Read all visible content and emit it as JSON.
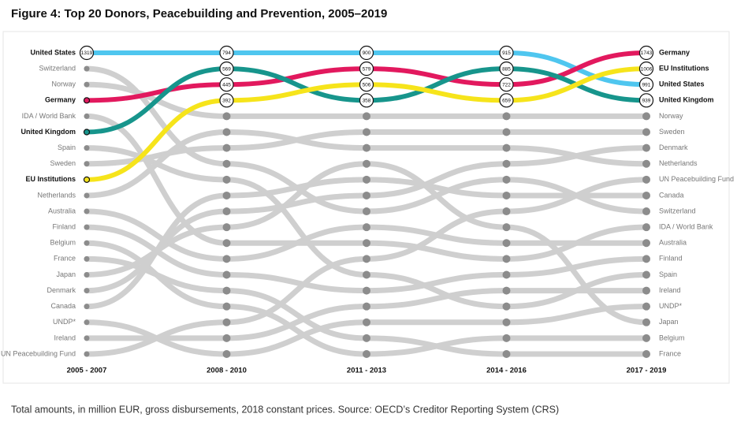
{
  "chart_data": {
    "type": "bump",
    "title": "Figure 4: Top 20 Donors, Peacebuilding and Prevention, 2005–2019",
    "footnote": "Total amounts, in million EUR, gross disbursements, 2018 constant prices. Source: OECD’s Creditor Reporting System (CRS)",
    "categories": [
      "2005 - 2007",
      "2008 - 2010",
      "2011 - 2013",
      "2014 - 2016",
      "2017 - 2019"
    ],
    "ylim": [
      1,
      20
    ],
    "series": [
      {
        "name": "United States",
        "color": "#4fc6ef",
        "emphasis": true,
        "ranks": [
          1,
          1,
          1,
          1,
          3
        ],
        "values": [
          1319,
          794,
          900,
          915,
          991
        ]
      },
      {
        "name": "Switzerland",
        "color": "#cfcfcf",
        "ranks": [
          2,
          8,
          11,
          9,
          11
        ]
      },
      {
        "name": "Norway",
        "color": "#cfcfcf",
        "ranks": [
          3,
          5,
          5,
          5,
          5
        ]
      },
      {
        "name": "Germany",
        "color": "#e2195e",
        "emphasis": true,
        "ranks": [
          4,
          3,
          2,
          3,
          1
        ],
        "values": [
          null,
          445,
          579,
          722,
          1743
        ]
      },
      {
        "name": "IDA / World Bank",
        "color": "#cfcfcf",
        "ranks": [
          5,
          13,
          13,
          14,
          12
        ]
      },
      {
        "name": "United Kingdom",
        "color": "#17958c",
        "emphasis": true,
        "ranks": [
          6,
          2,
          4,
          2,
          4
        ],
        "values": [
          null,
          569,
          358,
          885,
          939
        ]
      },
      {
        "name": "Spain",
        "color": "#cfcfcf",
        "ranks": [
          7,
          9,
          15,
          17,
          15
        ]
      },
      {
        "name": "Sweden",
        "color": "#cfcfcf",
        "ranks": [
          8,
          7,
          6,
          6,
          6
        ]
      },
      {
        "name": "EU Institutions",
        "color": "#f6e41b",
        "emphasis": true,
        "ranks": [
          9,
          4,
          3,
          4,
          2
        ],
        "values": [
          null,
          392,
          506,
          659,
          1006
        ]
      },
      {
        "name": "Netherlands",
        "color": "#cfcfcf",
        "ranks": [
          10,
          6,
          7,
          7,
          8
        ]
      },
      {
        "name": "Australia",
        "color": "#cfcfcf",
        "ranks": [
          11,
          14,
          12,
          13,
          13
        ]
      },
      {
        "name": "Finland",
        "color": "#cfcfcf",
        "ranks": [
          12,
          15,
          16,
          15,
          14
        ]
      },
      {
        "name": "Belgium",
        "color": "#cfcfcf",
        "ranks": [
          13,
          17,
          20,
          19,
          19
        ]
      },
      {
        "name": "France",
        "color": "#cfcfcf",
        "ranks": [
          14,
          16,
          19,
          20,
          20
        ]
      },
      {
        "name": "Japan",
        "color": "#cfcfcf",
        "ranks": [
          15,
          12,
          8,
          12,
          18
        ]
      },
      {
        "name": "Denmark",
        "color": "#cfcfcf",
        "ranks": [
          16,
          11,
          10,
          8,
          7
        ]
      },
      {
        "name": "Canada",
        "color": "#cfcfcf",
        "ranks": [
          17,
          10,
          9,
          10,
          10
        ]
      },
      {
        "name": "UNDP*",
        "color": "#cfcfcf",
        "ranks": [
          18,
          20,
          18,
          18,
          17
        ]
      },
      {
        "name": "Ireland",
        "color": "#cfcfcf",
        "ranks": [
          19,
          19,
          17,
          16,
          16
        ]
      },
      {
        "name": "UN Peacebuilding Fund",
        "color": "#cfcfcf",
        "ranks": [
          20,
          18,
          14,
          11,
          9
        ]
      }
    ]
  }
}
